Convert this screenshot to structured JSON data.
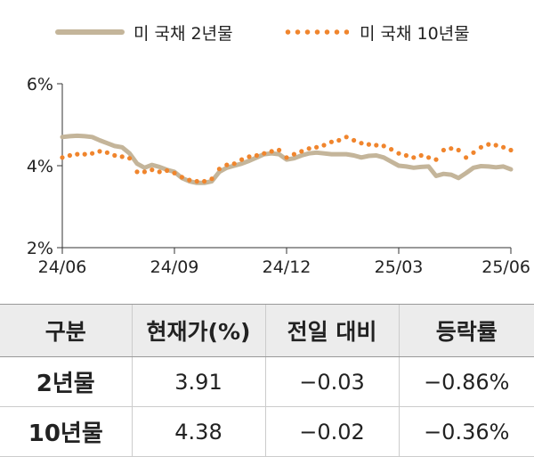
{
  "legend": {
    "series_2y": "미 국채 2년물",
    "series_10y": "미 국채 10년물"
  },
  "colors": {
    "series_2y": "#c4b59a",
    "series_10y": "#f0852d",
    "axis": "#333333"
  },
  "chart_data": {
    "type": "line",
    "x_ticks": [
      "24/06",
      "24/09",
      "24/12",
      "25/03",
      "25/06"
    ],
    "y_ticks": [
      "2%",
      "4%",
      "6%"
    ],
    "ylim": [
      2,
      6
    ],
    "xlim": [
      0,
      12
    ],
    "series": [
      {
        "name": "미 국채 2년물",
        "style": "line",
        "x": [
          0,
          0.2,
          0.4,
          0.6,
          0.8,
          1.0,
          1.2,
          1.4,
          1.6,
          1.8,
          2.0,
          2.2,
          2.4,
          2.6,
          2.8,
          3.0,
          3.2,
          3.4,
          3.6,
          3.8,
          4.0,
          4.2,
          4.4,
          4.6,
          4.8,
          5.0,
          5.2,
          5.4,
          5.6,
          5.8,
          6.0,
          6.2,
          6.4,
          6.6,
          6.8,
          7.0,
          7.2,
          7.4,
          7.6,
          7.8,
          8.0,
          8.2,
          8.4,
          8.6,
          8.8,
          9.0,
          9.2,
          9.4,
          9.6,
          9.8,
          10.0,
          10.2,
          10.4,
          10.6,
          10.8,
          11.0,
          11.2,
          11.4,
          11.6,
          11.8,
          12.0
        ],
        "y": [
          4.7,
          4.72,
          4.73,
          4.72,
          4.7,
          4.62,
          4.55,
          4.48,
          4.45,
          4.3,
          4.05,
          3.95,
          4.02,
          3.97,
          3.9,
          3.85,
          3.7,
          3.62,
          3.58,
          3.58,
          3.62,
          3.85,
          3.95,
          4.0,
          4.05,
          4.12,
          4.2,
          4.28,
          4.3,
          4.28,
          4.15,
          4.18,
          4.25,
          4.3,
          4.32,
          4.3,
          4.28,
          4.28,
          4.28,
          4.25,
          4.2,
          4.24,
          4.25,
          4.2,
          4.1,
          4.0,
          3.98,
          3.95,
          3.97,
          3.98,
          3.75,
          3.8,
          3.78,
          3.7,
          3.82,
          3.95,
          3.99,
          3.98,
          3.96,
          3.98,
          3.91
        ]
      },
      {
        "name": "미 국채 10년물",
        "style": "dots",
        "x": [
          0,
          0.2,
          0.4,
          0.6,
          0.8,
          1.0,
          1.2,
          1.4,
          1.6,
          1.8,
          2.0,
          2.2,
          2.4,
          2.6,
          2.8,
          3.0,
          3.2,
          3.4,
          3.6,
          3.8,
          4.0,
          4.2,
          4.4,
          4.6,
          4.8,
          5.0,
          5.2,
          5.4,
          5.6,
          5.8,
          6.0,
          6.2,
          6.4,
          6.6,
          6.8,
          7.0,
          7.2,
          7.4,
          7.6,
          7.8,
          8.0,
          8.2,
          8.4,
          8.6,
          8.8,
          9.0,
          9.2,
          9.4,
          9.6,
          9.8,
          10.0,
          10.2,
          10.4,
          10.6,
          10.8,
          11.0,
          11.2,
          11.4,
          11.6,
          11.8,
          12.0
        ],
        "y": [
          4.2,
          4.25,
          4.28,
          4.28,
          4.3,
          4.35,
          4.32,
          4.25,
          4.22,
          4.18,
          3.85,
          3.85,
          3.9,
          3.85,
          3.88,
          3.82,
          3.72,
          3.65,
          3.62,
          3.62,
          3.68,
          3.92,
          4.02,
          4.05,
          4.15,
          4.22,
          4.25,
          4.3,
          4.35,
          4.38,
          4.2,
          4.28,
          4.35,
          4.42,
          4.45,
          4.5,
          4.58,
          4.62,
          4.7,
          4.62,
          4.55,
          4.52,
          4.5,
          4.48,
          4.4,
          4.3,
          4.25,
          4.2,
          4.25,
          4.2,
          4.15,
          4.38,
          4.42,
          4.38,
          4.2,
          4.32,
          4.45,
          4.52,
          4.5,
          4.45,
          4.38
        ]
      }
    ]
  },
  "table": {
    "headers": [
      "구분",
      "현재가(%)",
      "전일 대비",
      "등락률"
    ],
    "rows": [
      [
        "2년물",
        "3.91",
        "−0.03",
        "−0.86%"
      ],
      [
        "10년물",
        "4.38",
        "−0.02",
        "−0.36%"
      ]
    ]
  }
}
